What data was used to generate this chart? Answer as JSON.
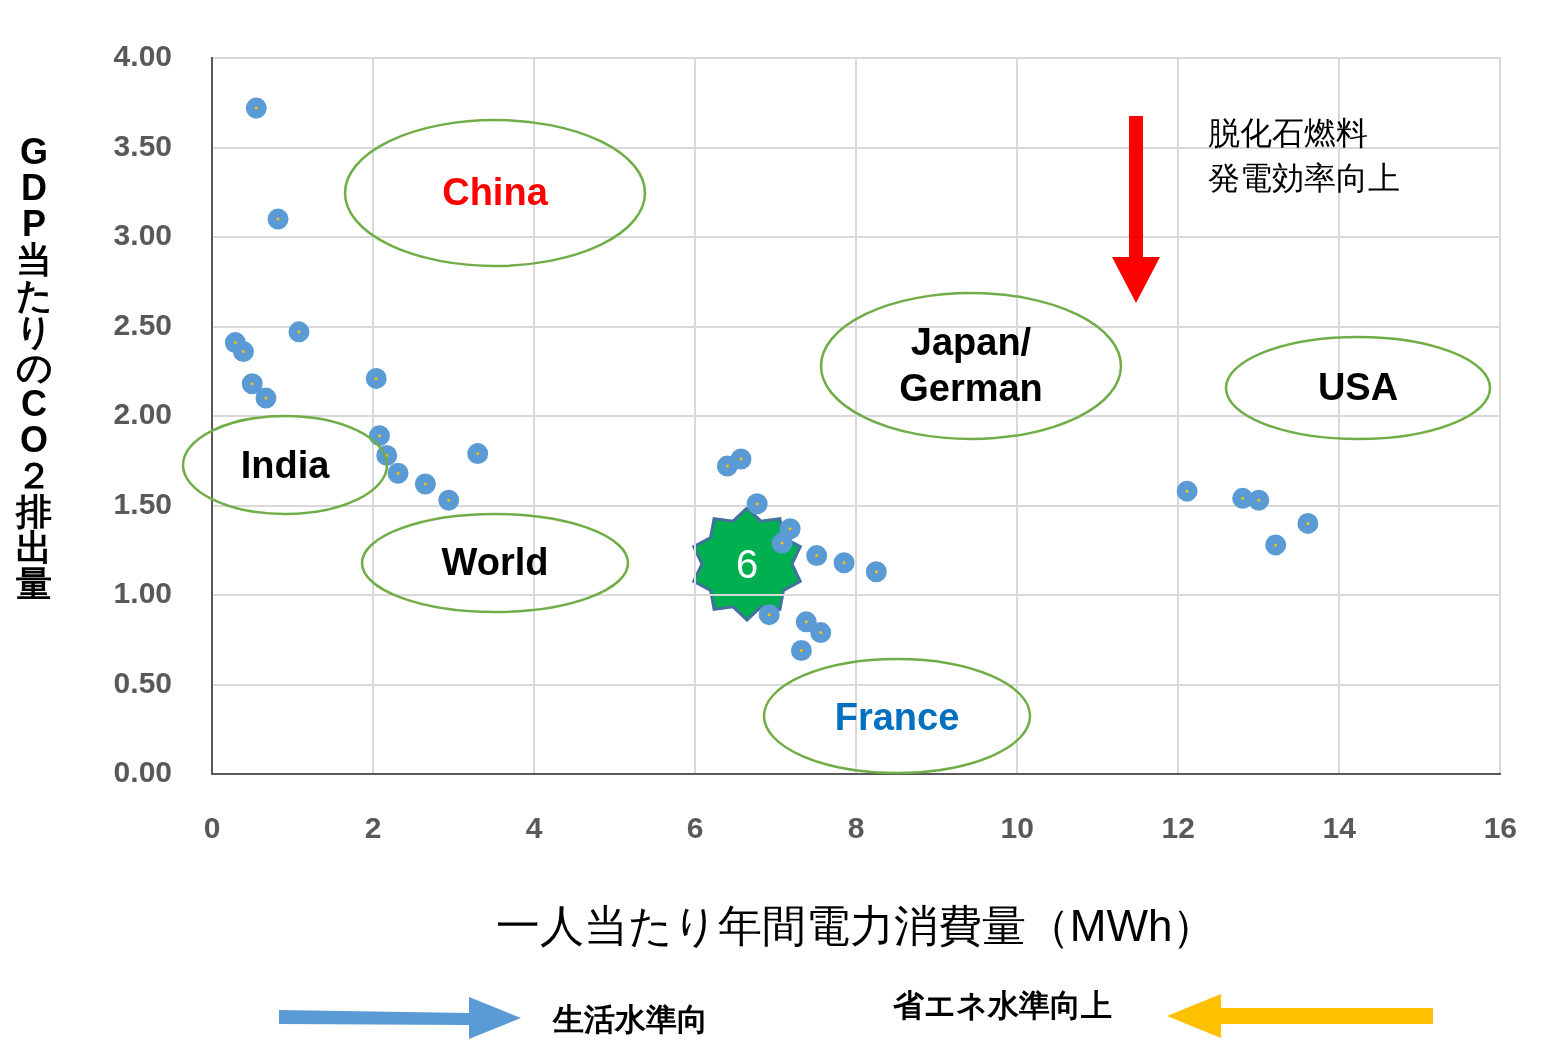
{
  "chart_data": {
    "type": "scatter",
    "xlabel": "一人当たり年間電力消費量（MWh）",
    "ylabel": "GDP当たりのCO２排出量",
    "x": [
      0.55,
      0.82,
      1.08,
      0.29,
      0.39,
      0.5,
      0.67,
      2.04,
      2.08,
      2.17,
      2.31,
      2.65,
      2.94,
      3.3,
      6.4,
      6.57,
      6.77,
      7.18,
      7.08,
      7.51,
      7.85,
      8.25,
      6.92,
      7.38,
      7.56,
      7.32,
      12.11,
      12.8,
      13.0,
      13.61,
      13.21
    ],
    "values": [
      3.72,
      3.1,
      2.47,
      2.41,
      2.36,
      2.18,
      2.1,
      2.21,
      1.89,
      1.78,
      1.68,
      1.62,
      1.53,
      1.79,
      1.72,
      1.76,
      1.51,
      1.37,
      1.29,
      1.22,
      1.18,
      1.13,
      0.89,
      0.85,
      0.79,
      0.69,
      1.58,
      1.54,
      1.53,
      1.4,
      1.28
    ],
    "color": "#5b9bd5",
    "marker": "circle",
    "xlim": [
      0,
      16
    ],
    "xticks": [
      0,
      2,
      4,
      6,
      8,
      10,
      12,
      14,
      16
    ],
    "ylim": [
      0,
      4
    ],
    "yticks": [
      {
        "value": 0,
        "label": "0.00"
      },
      {
        "value": 0.5,
        "label": "0.50"
      },
      {
        "value": 1,
        "label": "1.00"
      },
      {
        "value": 1.5,
        "label": "1.50"
      },
      {
        "value": 2,
        "label": "2.00"
      },
      {
        "value": 2.5,
        "label": "2.50"
      },
      {
        "value": 3,
        "label": "3.00"
      },
      {
        "value": 3.5,
        "label": "3.50"
      },
      {
        "value": 4,
        "label": "4.00"
      }
    ],
    "grid": true,
    "legend": false,
    "annotations": [
      "China",
      "India",
      "World",
      "Japan/ German",
      "USA",
      "France",
      "6",
      "脱化石燃料",
      "発電効率向上",
      "生活水準向",
      "省エネ水準向上"
    ]
  }
}
